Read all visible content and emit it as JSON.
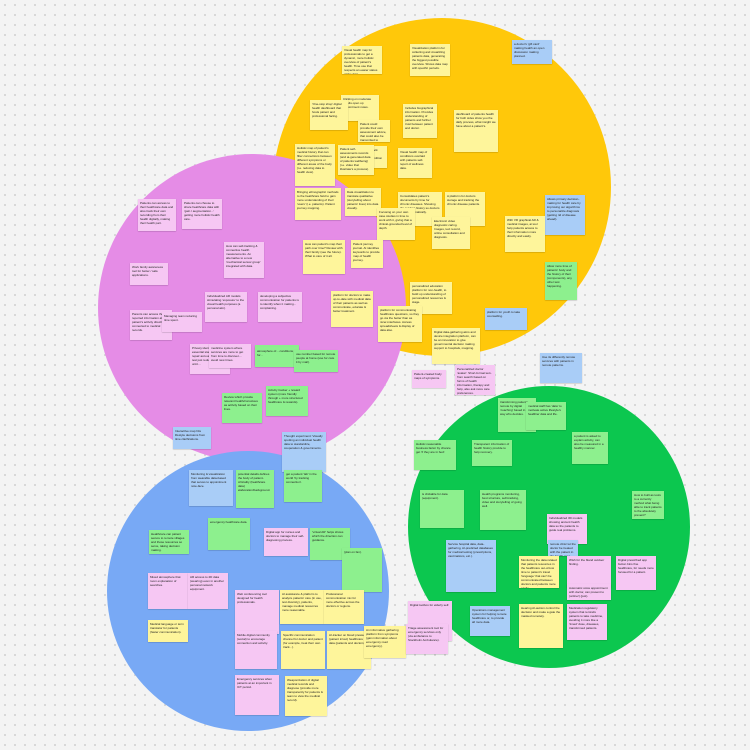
{
  "circles": [
    {
      "id": "yellow",
      "color": "#ffc80a"
    },
    {
      "id": "pink",
      "color": "#e58ce6"
    },
    {
      "id": "green",
      "color": "#0cc74f"
    },
    {
      "id": "blue",
      "color": "#78a9f5"
    }
  ],
  "note_colors": {
    "yellow": "#fef59b",
    "blue": "#a9cdf7",
    "pink": "#f6c7f3",
    "green": "#8df08e",
    "lime": "#c8f2a8",
    "peach": "#fde4a1"
  },
  "notes": [
    {
      "color": "yellow",
      "text": "Visual health map for professionals to get a dynamic, more holistic overview of patient's health. Time use that respects an easier status of the data."
    },
    {
      "color": "yellow",
      "text": "Visualization platform for collecting and visualizing patients data, generating the biggest possible overview. Shows data map with specific periods."
    },
    {
      "color": "blue",
      "text": "a doctor's 'gift card' making health an open discussion making planned."
    },
    {
      "color": "yellow",
      "text": "Clicking on moderate results open up appointment notes."
    },
    {
      "color": "yellow",
      "text": "Patient could provide their own assessment advice, that could also be transmitted to clinicians in the map."
    },
    {
      "color": "yellow",
      "text": "'One-stop shop' digital health dashboard that hosts patient and professional facing."
    },
    {
      "color": "yellow",
      "text": "Includes biographical information. Provides understanding of patients and further trust between patient and doctor."
    },
    {
      "color": "yellow",
      "text": "dashboard of patients health for both sides show you the daily process, what insight we have about a patient's."
    },
    {
      "color": "yellow",
      "text": "Ability to track progress of medical condition over time."
    },
    {
      "color": "yellow",
      "text": "Holistic map of patient's medical history that can filter connections between different symptoms or different areas of the body (i.e. reducing data to health view)."
    },
    {
      "color": "yellow",
      "text": "Patient self-assessments records (and ai-generated data of patients wellbeing) (i.e. video that illustrate's a process)."
    },
    {
      "color": "yellow",
      "text": "Visual health map of conditions overlaid with patients self-report of wellness data."
    },
    {
      "color": "yellow",
      "text": "Consolidates patient's documents by time for chronic diseases. Showing the readout history so doctors have systematically."
    },
    {
      "color": "yellow",
      "text": "A platform for doctors storage and tracking the chronic disease patients."
    },
    {
      "color": "blue",
      "text": "Allows primary decision-making for health care by improving our algorithms to personalize diagnosis (getting rid of disease ahead)."
    },
    {
      "color": "yellow",
      "text": "Bringing ethnographic methods to the healthcare field to gain more understanding of their 'users' (i.e. patients). Patient journey mapping."
    },
    {
      "color": "yellow",
      "text": "Data visualization to translate qualitative (storytelling about patients' lives) into data visually."
    },
    {
      "color": "yellow",
      "text": "Focusing on your own case studies in time to work with it, giving that a clinical-grounded level of depth."
    },
    {
      "color": "yellow",
      "text": "Electronic video diagnostic caring. Images, text record, online consultation and diagnosis."
    },
    {
      "color": "yellow",
      "text": "With VR graphical AR & medical images, ai tool help patients access to their information more directly and easily."
    },
    {
      "color": "pink",
      "text": "Patients can access to their healthcare data and also track their own recording from their health digitally, making their health part."
    },
    {
      "color": "pink",
      "text": "Patients can choose to share healthcare data with 'gain / augmentation...' getting more holistic health care."
    },
    {
      "color": "green",
      "text": "Allow more time of patients' body and the history of their (components), any other test happening."
    },
    {
      "color": "yellow",
      "text": "How can patient's map their path over time? Review with their family (see the future). What to care of it all."
    },
    {
      "color": "yellow",
      "text": "Patient journey journal. AI identifies keywords to provide map of health journey."
    },
    {
      "color": "pink",
      "text": "How can self-tracking & connective health measurements. An alternative to a new 'mechanical sensor group' integrated with data."
    },
    {
      "color": "pink",
      "text": "Work family awareness tool for better / safe applications."
    },
    {
      "color": "yellow",
      "text": "platform for doctors to make up-to-date with medical data of their patients as well as communicate, educate & better treatment."
    },
    {
      "color": "yellow",
      "text": "personalized education platform for non-health, to build up understanding of personalized resources & stage."
    },
    {
      "color": "yellow",
      "text": "platform for communicating healthcare questions, so they go via the better than as nicer-interfaces. Access spreadsheets & display of data also."
    },
    {
      "color": "yellow",
      "text": "Digital data-gathering aims and device integration platform, can be an innovation to give governmental decision making support to hospitals, mapping."
    },
    {
      "color": "blue",
      "text": "platform for youth to take counselling."
    },
    {
      "color": "pink",
      "text": "Parents can access their reported information about patient's activity directly connected to medical records."
    },
    {
      "color": "pink",
      "text": "Managing team reducing time spent."
    },
    {
      "color": "pink",
      "text": "Individualized AR models stimulating 'exposure' to the visual health purposes (a personal aim)."
    },
    {
      "color": "pink",
      "text": "developing a subjective communication for patients is to identify when it making... complaining."
    },
    {
      "color": "pink",
      "text": "Privacy identifier using essential standards, rule repair accounts, high-level test just reduces from time until...."
    },
    {
      "color": "pink",
      "text": "medicine system where services are more to get from time to discover.... avoid new times."
    },
    {
      "color": "green",
      "text": "remote clinic overview facilitates... interaction."
    },
    {
      "color": "green",
      "text": "atmosphere of... conditions for..."
    },
    {
      "color": "green",
      "text": "use number based for remote people at home (use for care it by mail)."
    },
    {
      "color": "green",
      "text": "Activity tracker + reward system (more friendly through + more structured healthcare & rewards)."
    },
    {
      "color": "green",
      "text": "Review which provide relevant health/conscious as activity based on their lives."
    },
    {
      "color": "pink",
      "text": "Patient-created body maps of symptoms."
    },
    {
      "color": "pink",
      "text": "Personalized doctor 'avatar'. Short-format text-from search based on forms of health information, therapy and help, also ask more care preferences."
    },
    {
      "color": "blue",
      "text": "Use its differently remote services with patients in remote patterns."
    },
    {
      "color": "green",
      "text": "transforming patients, remote by digital 'coaching' based in the way who decides."
    },
    {
      "color": "green",
      "text": "medical staff has 'data' to motivate active lifestyle's healthier data and life."
    },
    {
      "color": "blue",
      "text": "Interactive map hits lifestyle decisions from time clarifications."
    },
    {
      "color": "blue",
      "text": "Thought experiment: Visually spotting an individual health data to standardize, cooperation & governments."
    },
    {
      "color": "green",
      "text": "a patient is asked to explain activity, can also be measured in a healthy manner."
    },
    {
      "color": "green",
      "text": "Holistic reasonable business factor by chance get 'if they are in bed'."
    },
    {
      "color": "green",
      "text": "Transparent information of health history provide to help recovery."
    },
    {
      "color": "blue",
      "text": "Monitoring & visualization from wearable data-based that serves to appointment note-face."
    },
    {
      "color": "green",
      "text": "potential details defines the body of patient-criticality (healthcare data) elaboration/background."
    },
    {
      "color": "green",
      "text": "get a patient 'lab' in the world 'by tracking connection'."
    },
    {
      "color": "green",
      "text": "is clickable for data (equipment)."
    },
    {
      "color": "green",
      "text": "Health programs monitoring, best structure, self-tracking, video and storytelling of going well."
    },
    {
      "color": "green",
      "text": "How to built as tools to a currently method what being able to track patients to the absolutely prevent?"
    },
    {
      "color": "green",
      "text": "emergency healthcare data."
    },
    {
      "color": "pink",
      "text": "Individualized 3D models showing ancient health data so the patients to guide real problems."
    },
    {
      "color": "green",
      "text": "Healthcare can patient secure to remote villages and those resources so serve, taking decision making."
    },
    {
      "color": "pink",
      "text": "Digital app for nurses and doctors to manage their self-diagnosing process."
    },
    {
      "color": "green",
      "text": "'virtual AR' helps shows which the direction can guidance."
    },
    {
      "color": "blue",
      "text": "remote clinic let the doctor be treated with the patient in the health area."
    },
    {
      "color": "green",
      "text": "(plan on fan)."
    },
    {
      "color": "blue",
      "text": "Service hospital data, data-gathering, AI-predicted databases for medical testing (prescriptions, vaccinations, etc.)."
    },
    {
      "color": "yellow",
      "text": "Monitoring the data related that patients resources in the healthcare out-of-low time to patient's travel 'language' that can't be communicated between doctors and patients more easily."
    },
    {
      "color": "pink",
      "text": "Wish for the bland outdoor finding."
    },
    {
      "color": "pink",
      "text": "Digital prescribed app button bins fine healthcare, for needs more focused for a patient."
    },
    {
      "color": "pink",
      "text": "Automatic voice appointment with doctor, can present to (online!) (just)."
    },
    {
      "color": "pink",
      "text": "Mixed atmosphere that room explanation of searches."
    },
    {
      "color": "pink",
      "text": "AR access to 2D data (wearing) even in another personal network equipment."
    },
    {
      "color": "pink",
      "text": "Web conferencing tool designed for health professionals."
    },
    {
      "color": "yellow",
      "text": "AI assistance & platform to analyze patients' care (in use, text diversity), patients, manage medical resources more reasonable."
    },
    {
      "color": "yellow",
      "text": "Professional communication mix for more effective across the doctors or regions."
    },
    {
      "color": "yellow",
      "text": "Medical language or term translator for patients (faster communication)."
    },
    {
      "color": "pink",
      "text": "Digital toolbox for elderly self."
    },
    {
      "color": "blue",
      "text": "Operations management system for helping remote healthcare or, to provide all more data."
    },
    {
      "color": "yellow",
      "text": "Hearing AI-autism control the decision and make a gate the masked remotely."
    },
    {
      "color": "pink",
      "text": "Medication regulatory system that reminds patients to take medicine, avoiding it more like a 'timed' dose, diseases, transformed patients."
    },
    {
      "color": "pink",
      "text": "Mobile digital community (social) to encourage connection and activity."
    },
    {
      "color": "yellow",
      "text": "Specific communication channel for doctor and patient (for example, treat their own track...)."
    },
    {
      "color": "yellow",
      "text": "AI-tracker on blood pressure (patient in/out) healthcare data (patients and doctors)."
    },
    {
      "color": "yellow",
      "text": "An informative gathering platform from symptoms (gain information about emergency road emergency)."
    },
    {
      "color": "pink",
      "text": "Triage assessment tool for emergency services only (via ambulance to Stockholm Ambulance)."
    },
    {
      "color": "pink",
      "text": "Emergency services when patients at an important in ICT period."
    },
    {
      "color": "yellow",
      "text": "Weaponization of digital medical records and diagnose (provide more transparently for patients & team to view the medical record)."
    },
    {
      "color": "yellow",
      "text": "A filter for doctor to provide a list of basic drinking specific useful information to introduced."
    }
  ]
}
